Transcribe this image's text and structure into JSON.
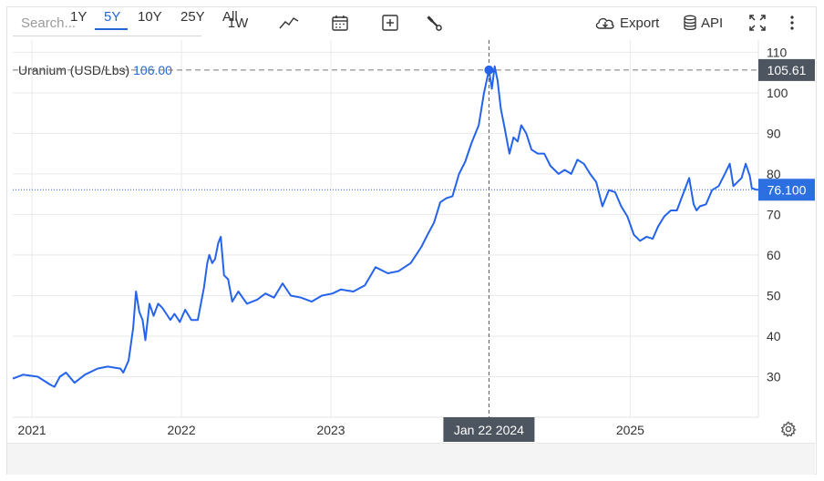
{
  "toolbar": {
    "search_placeholder": "Search...",
    "interval_label": "1W",
    "export_label": "Export",
    "api_label": "API",
    "icons": [
      "line-chart-icon",
      "calendar-icon",
      "plus-box-icon",
      "wrench-icon",
      "cloud-download-icon",
      "database-icon",
      "fullscreen-icon",
      "kebab-menu-icon"
    ]
  },
  "series_label": {
    "name": "Uranium (USD/Lbs)",
    "value": "106.00"
  },
  "crosshair": {
    "date_label": "Jan 22 2024",
    "price_label": "105.61"
  },
  "last_price_label": "76.100",
  "ranges": [
    "1Y",
    "5Y",
    "10Y",
    "25Y",
    "All"
  ],
  "active_range": "5Y",
  "colors": {
    "line": "#2563eb",
    "accent_text": "#2466d8",
    "crosshair_badge": "#4d5560",
    "last_price_badge": "#2c6fe0"
  },
  "chart_data": {
    "type": "line",
    "title": "",
    "xlabel": "",
    "ylabel": "",
    "x_ticks": [
      "2021",
      "2022",
      "2023",
      "2025"
    ],
    "y_ticks": [
      30,
      40,
      50,
      60,
      70,
      80,
      90,
      100,
      110
    ],
    "xlim": [
      "2020-11-15",
      "2025-11-10"
    ],
    "ylim": [
      20,
      113
    ],
    "grid": true,
    "series": [
      {
        "name": "Uranium (USD/Lbs)",
        "x": [
          "2020-11-15",
          "2020-12-10",
          "2021-01-15",
          "2021-02-15",
          "2021-02-25",
          "2021-03-10",
          "2021-03-25",
          "2021-04-15",
          "2021-05-10",
          "2021-06-10",
          "2021-07-05",
          "2021-08-05",
          "2021-08-12",
          "2021-08-25",
          "2021-09-05",
          "2021-09-12",
          "2021-09-20",
          "2021-09-28",
          "2021-10-05",
          "2021-10-15",
          "2021-10-25",
          "2021-11-05",
          "2021-11-15",
          "2021-11-25",
          "2021-12-05",
          "2021-12-15",
          "2021-12-28",
          "2022-01-10",
          "2022-01-25",
          "2022-02-10",
          "2022-02-25",
          "2022-03-05",
          "2022-03-10",
          "2022-03-17",
          "2022-03-24",
          "2022-04-01",
          "2022-04-07",
          "2022-04-15",
          "2022-04-25",
          "2022-05-05",
          "2022-05-20",
          "2022-06-10",
          "2022-07-05",
          "2022-07-25",
          "2022-08-15",
          "2022-09-05",
          "2022-09-25",
          "2022-10-20",
          "2022-11-15",
          "2022-12-10",
          "2023-01-05",
          "2023-01-25",
          "2023-02-25",
          "2023-03-25",
          "2023-04-20",
          "2023-05-20",
          "2023-06-15",
          "2023-07-15",
          "2023-08-10",
          "2023-08-25",
          "2023-09-10",
          "2023-09-25",
          "2023-10-10",
          "2023-10-25",
          "2023-11-10",
          "2023-11-25",
          "2023-12-10",
          "2023-12-28",
          "2024-01-10",
          "2024-01-22",
          "2024-01-29",
          "2024-02-05",
          "2024-02-12",
          "2024-02-20",
          "2024-03-01",
          "2024-03-12",
          "2024-03-22",
          "2024-04-01",
          "2024-04-10",
          "2024-04-22",
          "2024-05-05",
          "2024-05-20",
          "2024-06-05",
          "2024-06-20",
          "2024-07-10",
          "2024-07-25",
          "2024-08-10",
          "2024-08-25",
          "2024-09-10",
          "2024-09-25",
          "2024-10-10",
          "2024-10-25",
          "2024-11-10",
          "2024-11-25",
          "2024-12-10",
          "2024-12-25",
          "2025-01-10",
          "2025-01-25",
          "2025-02-10",
          "2025-02-25",
          "2025-03-10",
          "2025-03-25",
          "2025-04-10",
          "2025-04-25",
          "2025-05-10",
          "2025-05-25",
          "2025-06-05",
          "2025-06-12",
          "2025-06-20",
          "2025-07-05",
          "2025-07-20",
          "2025-08-05",
          "2025-08-20",
          "2025-09-01",
          "2025-09-10",
          "2025-09-20",
          "2025-09-30",
          "2025-10-10",
          "2025-10-20",
          "2025-10-25",
          "2025-11-05",
          "2025-11-10"
        ],
        "values": [
          29.5,
          30.5,
          30.0,
          28.0,
          27.5,
          30.0,
          31.0,
          28.5,
          30.5,
          32.0,
          32.5,
          32.0,
          31.0,
          34.0,
          42.0,
          51.0,
          46.0,
          44.0,
          39.0,
          48.0,
          45.0,
          48.0,
          47.0,
          45.5,
          44.0,
          45.5,
          43.5,
          46.5,
          44.0,
          44.0,
          52.0,
          58.0,
          60.0,
          58.0,
          59.0,
          63.0,
          64.5,
          55.0,
          54.0,
          48.5,
          51.0,
          48.0,
          49.0,
          50.5,
          49.5,
          53.0,
          50.0,
          49.5,
          48.5,
          50.0,
          50.5,
          51.5,
          51.0,
          52.5,
          57.0,
          55.5,
          56.0,
          58.0,
          62.0,
          65.0,
          68.0,
          73.0,
          74.0,
          74.5,
          80.0,
          83.0,
          87.5,
          92.0,
          100.0,
          105.6,
          101.0,
          106.5,
          103.0,
          96.0,
          91.0,
          85.0,
          89.0,
          88.0,
          92.0,
          90.0,
          86.0,
          85.0,
          85.0,
          82.0,
          80.0,
          81.0,
          80.0,
          83.5,
          82.5,
          80.0,
          78.0,
          72.0,
          76.0,
          75.5,
          72.0,
          69.5,
          65.0,
          63.5,
          64.5,
          64.0,
          67.0,
          69.5,
          71.0,
          71.0,
          75.0,
          79.0,
          72.5,
          71.0,
          72.0,
          72.5,
          76.0,
          77.0,
          80.0,
          82.5,
          77.0,
          78.0,
          79.0,
          82.5,
          79.5,
          76.5,
          76.1,
          76.1
        ]
      }
    ]
  }
}
